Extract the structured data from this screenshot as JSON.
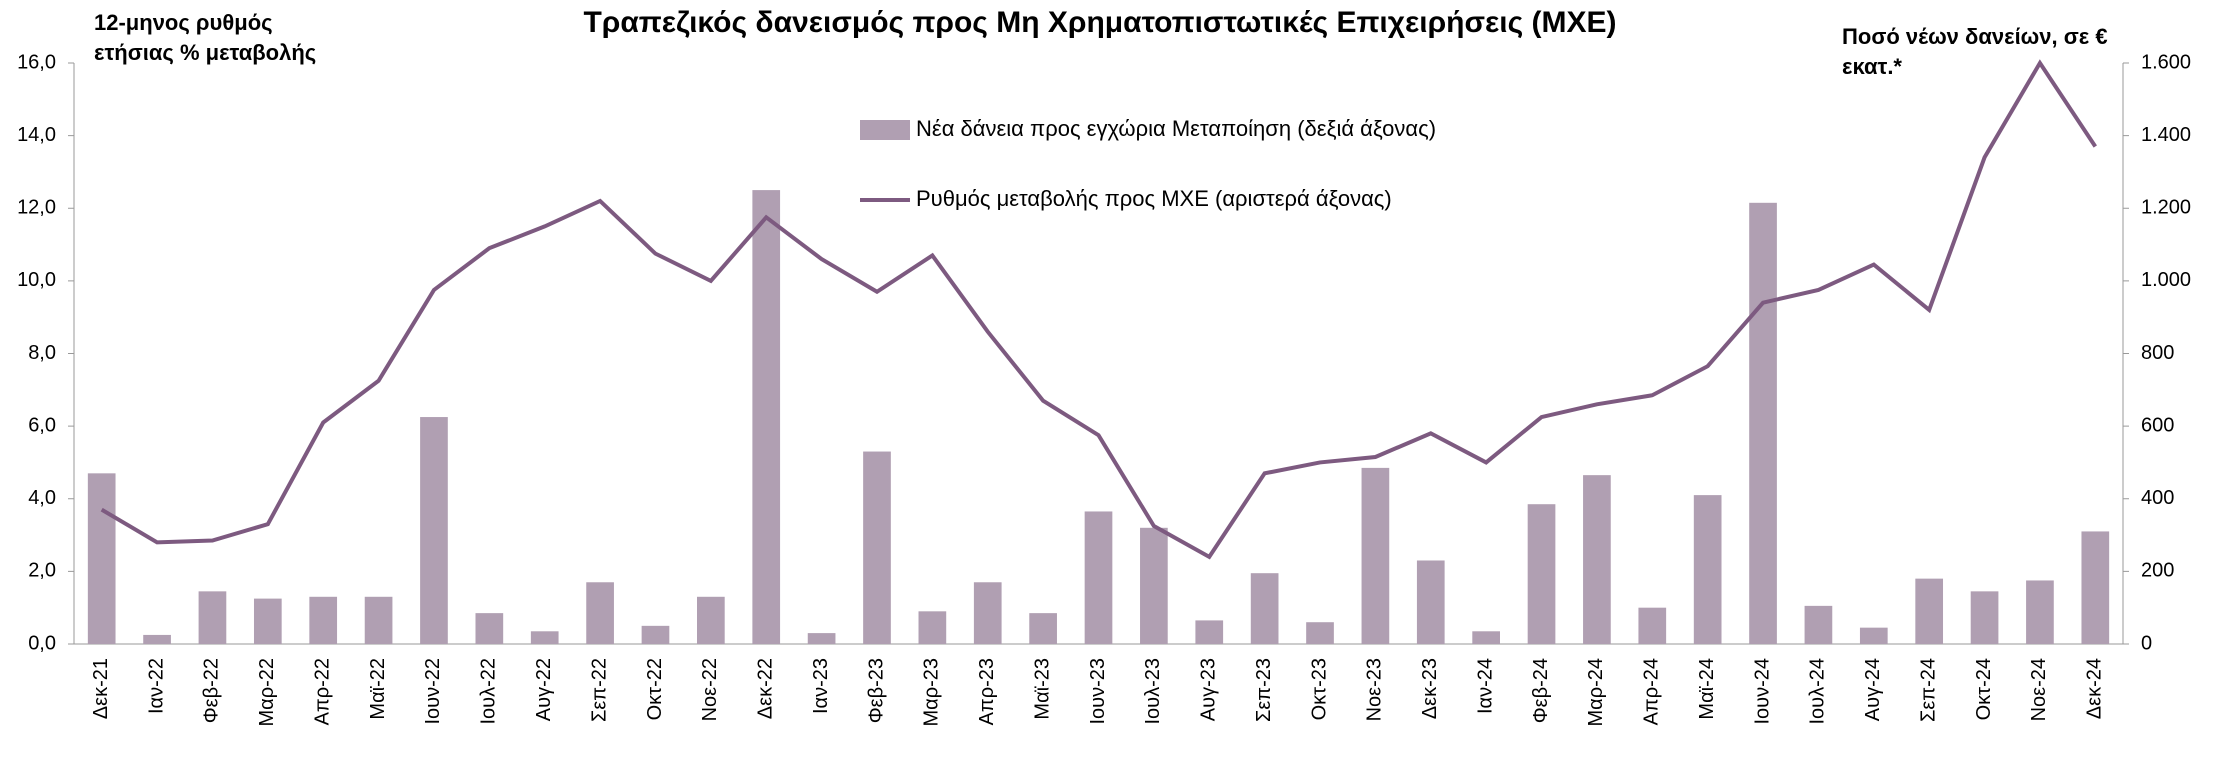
{
  "chart_data": {
    "type": "bar-line",
    "title": "Τραπεζικός δανεισμός προς Μη Χρηματοπιστωτικές Επιχειρήσεις (ΜΧΕ)",
    "y_label": "12-μηνος ρυθμός ετήσιας % μεταβολής",
    "y2_label": "Ποσό νέων δανείων, σε € εκατ.*",
    "categories": [
      "Δεκ-21",
      "Ιαν-22",
      "Φεβ-22",
      "Μαρ-22",
      "Απρ-22",
      "Μαϊ-22",
      "Ιουν-22",
      "Ιουλ-22",
      "Αυγ-22",
      "Σεπ-22",
      "Οκτ-22",
      "Νοε-22",
      "Δεκ-22",
      "Ιαν-23",
      "Φεβ-23",
      "Μαρ-23",
      "Απρ-23",
      "Μαϊ-23",
      "Ιουν-23",
      "Ιουλ-23",
      "Αυγ-23",
      "Σεπ-23",
      "Οκτ-23",
      "Νοε-23",
      "Δεκ-23",
      "Ιαν-24",
      "Φεβ-24",
      "Μαρ-24",
      "Απρ-24",
      "Μαϊ-24",
      "Ιουν-24",
      "Ιουλ-24",
      "Αυγ-24",
      "Σεπ-24",
      "Οκτ-24",
      "Νοε-24",
      "Δεκ-24"
    ],
    "series": [
      {
        "name": "Νέα δάνεια προς εγχώρια Μεταποίηση (δεξιά άξονας)",
        "type": "bar",
        "axis": "y2",
        "color": "#b09fb2",
        "values": [
          470,
          25,
          145,
          125,
          130,
          130,
          625,
          85,
          35,
          170,
          50,
          130,
          1250,
          30,
          530,
          90,
          170,
          85,
          365,
          320,
          65,
          195,
          60,
          485,
          230,
          35,
          385,
          465,
          100,
          410,
          1215,
          105,
          45,
          180,
          145,
          175,
          310
        ]
      },
      {
        "name": "Ρυθμός μεταβολής προς ΜΧΕ (αριστερά άξονας)",
        "type": "line",
        "axis": "y",
        "color": "#7d5a80",
        "values": [
          3.7,
          2.8,
          2.85,
          3.3,
          6.1,
          7.25,
          9.75,
          10.9,
          11.5,
          12.2,
          10.75,
          10.0,
          11.75,
          10.6,
          9.7,
          10.7,
          8.6,
          6.7,
          5.75,
          3.25,
          2.4,
          4.7,
          5.0,
          5.15,
          5.8,
          5.0,
          6.25,
          6.6,
          6.85,
          7.65,
          9.4,
          9.75,
          10.45,
          9.2,
          13.4,
          16.0,
          13.7
        ]
      }
    ],
    "ylim": [
      0,
      16
    ],
    "yticks": [
      {
        "value": 0,
        "label": "0,0"
      },
      {
        "value": 2,
        "label": "2,0"
      },
      {
        "value": 4,
        "label": "4,0"
      },
      {
        "value": 6,
        "label": "6,0"
      },
      {
        "value": 8,
        "label": "8,0"
      },
      {
        "value": 10,
        "label": "10,0"
      },
      {
        "value": 12,
        "label": "12,0"
      },
      {
        "value": 14,
        "label": "14,0"
      },
      {
        "value": 16,
        "label": "16,0"
      }
    ],
    "y2lim": [
      0,
      1600
    ],
    "y2ticks": [
      0,
      200,
      400,
      600,
      800,
      {
        "value": 1000,
        "label": "1.000"
      },
      {
        "value": 1200,
        "label": "1.200"
      },
      {
        "value": 1400,
        "label": "1.400"
      },
      {
        "value": 1600,
        "label": "1.600"
      }
    ]
  }
}
